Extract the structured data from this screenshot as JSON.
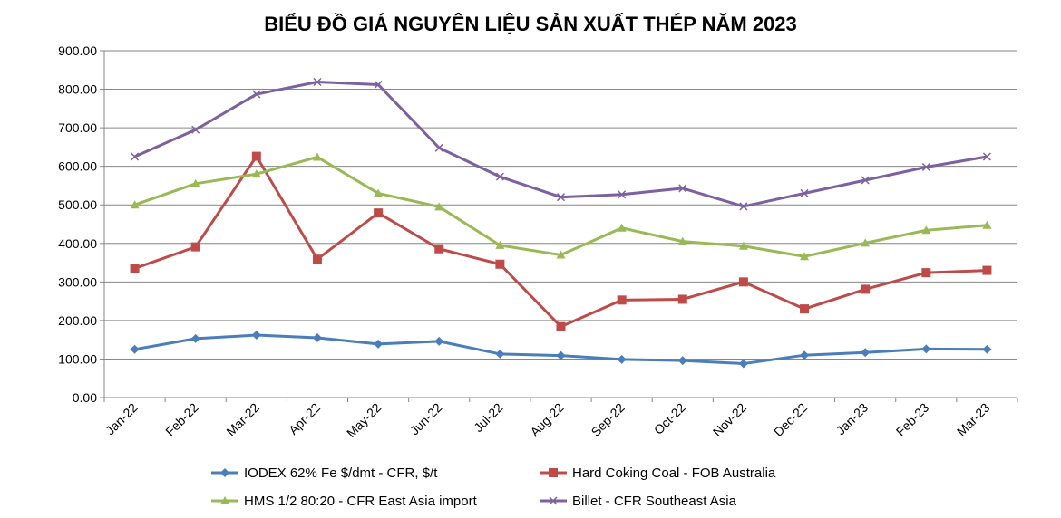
{
  "chart_data": {
    "type": "line",
    "title": "BIỂU ĐỒ GIÁ NGUYÊN LIỆU SẢN XUẤT THÉP NĂM 2023",
    "xlabel": "",
    "ylabel": "",
    "ylim": [
      0,
      900
    ],
    "y_ticks": [
      "0.00",
      "100.00",
      "200.00",
      "300.00",
      "400.00",
      "500.00",
      "600.00",
      "700.00",
      "800.00",
      "900.00"
    ],
    "grid": true,
    "legend_position": "bottom",
    "categories": [
      "Jan-22",
      "Feb-22",
      "Mar-22",
      "Apr-22",
      "May-22",
      "Jun-22",
      "Jul-22",
      "Aug-22",
      "Sep-22",
      "Oct-22",
      "Nov-22",
      "Dec-22",
      "Jan-23",
      "Feb-23",
      "Mar-23"
    ],
    "series": [
      {
        "name": "IODEX 62% Fe $/dmt - CFR, $/t",
        "color": "#4a7ebb",
        "marker": "diamond",
        "values": [
          125,
          153,
          162,
          155,
          139,
          146,
          113,
          109,
          99,
          96,
          88,
          110,
          117,
          126,
          125
        ]
      },
      {
        "name": "Hard Coking Coal - FOB Australia",
        "color": "#be4b48",
        "marker": "square",
        "values": [
          335,
          391,
          626,
          359,
          479,
          386,
          346,
          184,
          253,
          255,
          300,
          230,
          281,
          324,
          330
        ]
      },
      {
        "name": "HMS 1/2 80:20 - CFR East Asia import",
        "color": "#98b954",
        "marker": "triangle",
        "values": [
          500,
          555,
          580,
          624,
          530,
          495,
          395,
          370,
          440,
          405,
          393,
          366,
          401,
          434,
          447
        ]
      },
      {
        "name": "Billet - CFR Southeast Asia",
        "color": "#7d60a0",
        "marker": "x",
        "values": [
          625,
          695,
          787,
          819,
          812,
          648,
          573,
          520,
          527,
          543,
          496,
          530,
          564,
          598,
          625
        ]
      }
    ]
  }
}
